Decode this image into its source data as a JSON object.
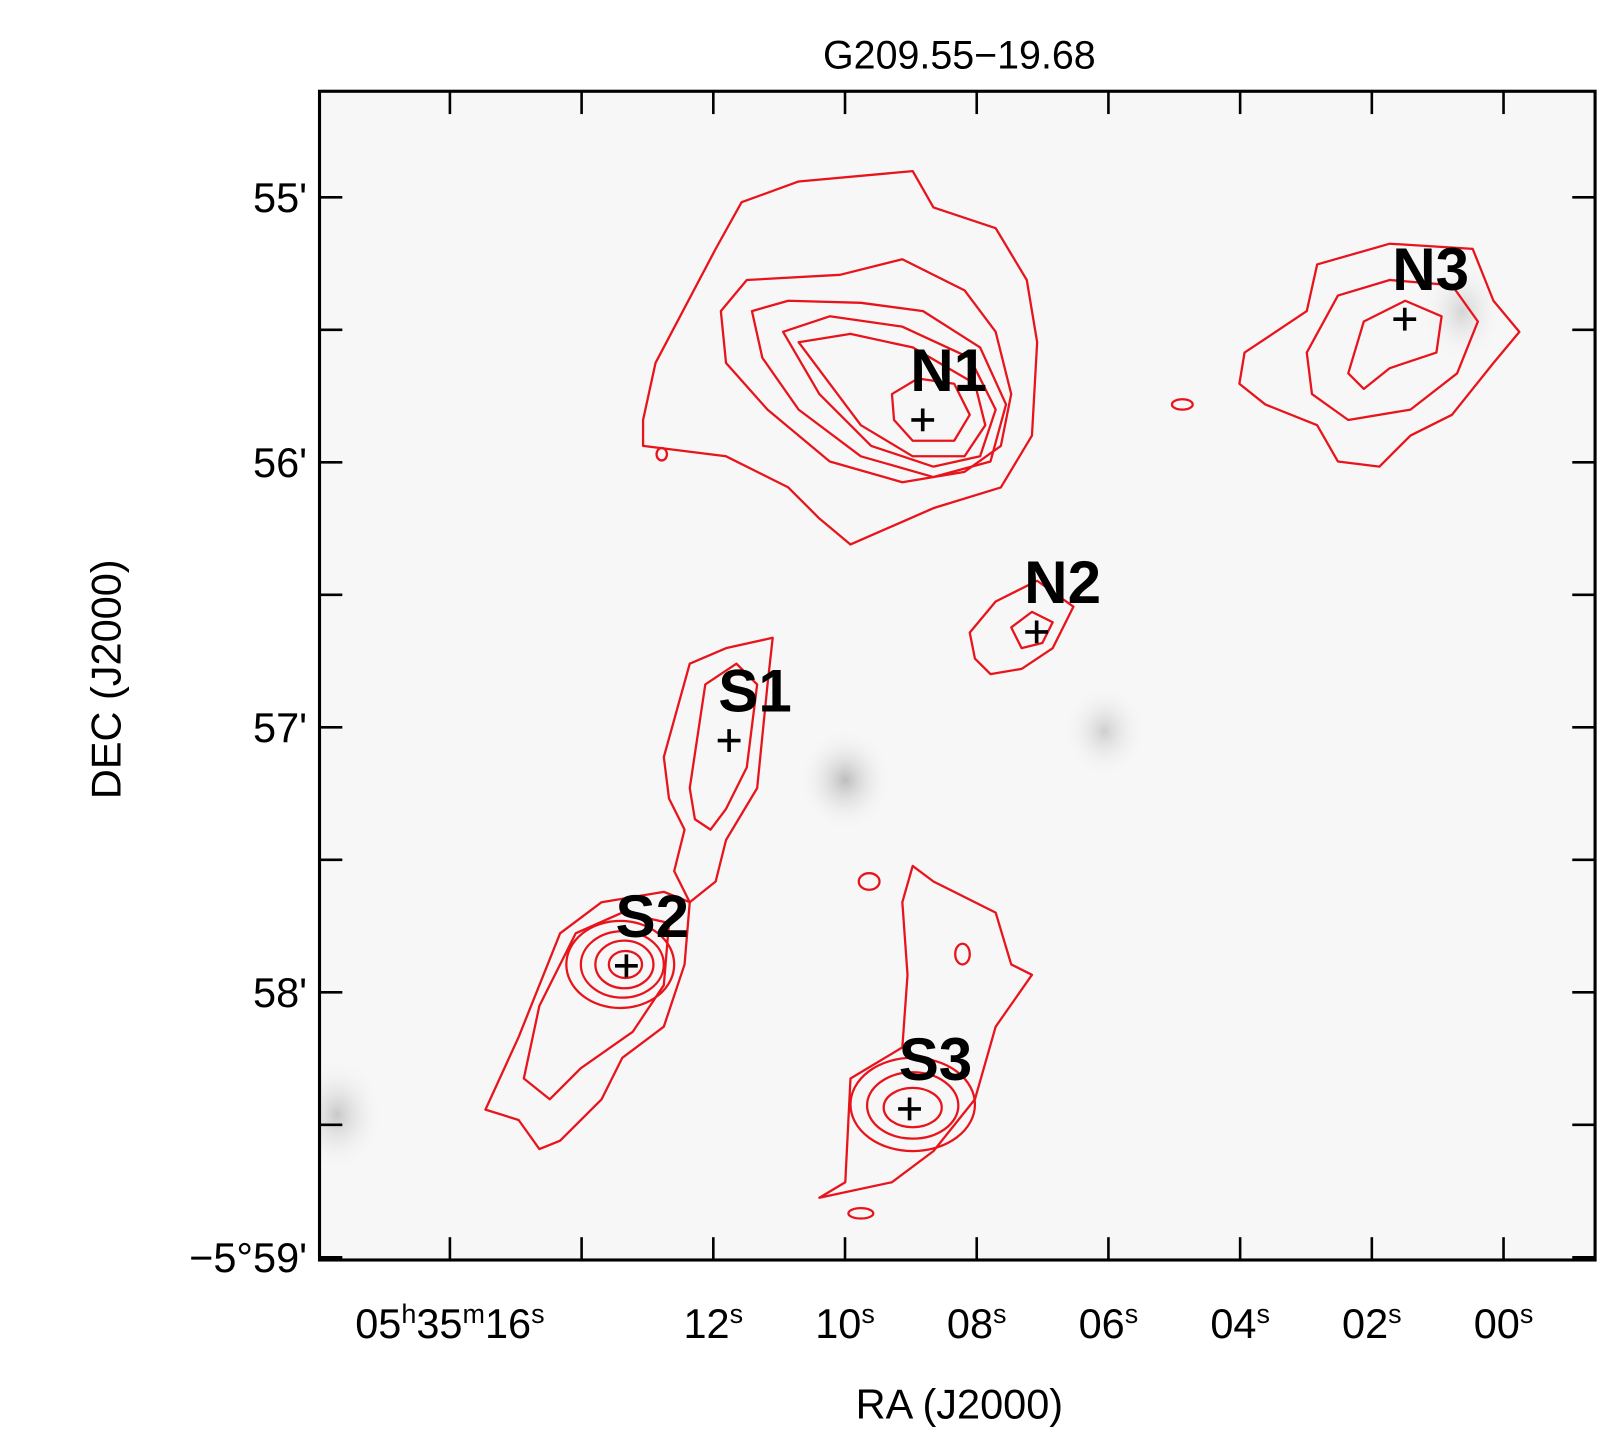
{
  "chart_data": {
    "type": "scatter",
    "title": "G209.55−19.68",
    "x_label": "RA (J2000)",
    "y_label": "DEC (J2000)",
    "xlim": [
      17.98,
      -1.39
    ],
    "ylim": [
      59.01,
      54.6
    ],
    "xticks": [
      {
        "value": 16,
        "label": "05h35m16s"
      },
      {
        "value": 14,
        "label": null
      },
      {
        "value": 12,
        "label": "12s"
      },
      {
        "value": 10,
        "label": "10s"
      },
      {
        "value": 8,
        "label": "08s"
      },
      {
        "value": 6,
        "label": "06s"
      },
      {
        "value": 4,
        "label": "04s"
      },
      {
        "value": 2,
        "label": "02s"
      },
      {
        "value": 0,
        "label": "00s"
      }
    ],
    "yticks": [
      {
        "value": 55,
        "label": "55'"
      },
      {
        "value": 55.5,
        "label": null
      },
      {
        "value": 56,
        "label": "56'"
      },
      {
        "value": 56.5,
        "label": null
      },
      {
        "value": 57,
        "label": "57'"
      },
      {
        "value": 57.5,
        "label": null
      },
      {
        "value": 58,
        "label": "58'"
      },
      {
        "value": 58.5,
        "label": null
      },
      {
        "value": 59,
        "label": "−5°59'"
      }
    ],
    "labels": [
      "N1",
      "N2",
      "N3",
      "S1",
      "S2",
      "S3"
    ],
    "x": [
      8.82,
      7.09,
      1.5,
      11.76,
      13.32,
      9.02
    ],
    "values": [
      55.84,
      56.64,
      55.46,
      57.05,
      57.9,
      58.44
    ],
    "color": "#000000"
  }
}
